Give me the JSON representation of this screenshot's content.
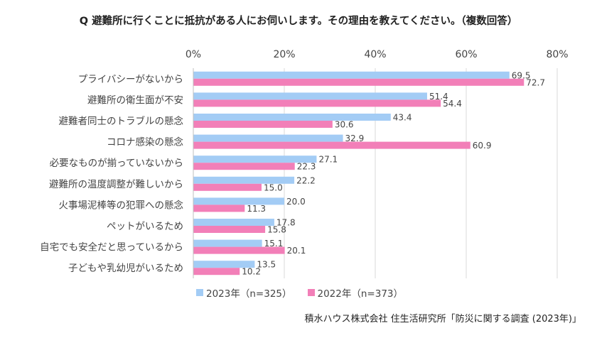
{
  "title": "Q 避難所に行くことに抵抗がある人にお伺いします。その理由を教えてください。（複数回答）",
  "source": "積水ハウス株式会社 住生活研究所「防災に関する調査 (2023年)」",
  "chart_data": {
    "type": "bar",
    "orientation": "horizontal",
    "title": "Q 避難所に行くことに抵抗がある人にお伺いします。その理由を教えてください。（複数回答）",
    "categories": [
      "プライバシーがないから",
      "避難所の衛生面が不安",
      "避難者同士のトラブルの懸念",
      "コロナ感染の懸念",
      "必要なものが揃っていないから",
      "避難所の温度調整が難しいから",
      "火事場泥棒等の犯罪への懸念",
      "ペットがいるため",
      "自宅でも安全だと思っているから",
      "子どもや乳幼児がいるため"
    ],
    "series": [
      {
        "name": "2023年（n=325）",
        "color": "#a3ccf5",
        "values": [
          69.5,
          51.4,
          43.4,
          32.9,
          27.1,
          22.2,
          20.0,
          17.8,
          15.1,
          13.5
        ],
        "labels": [
          "69.5",
          "51.4",
          "43.4",
          "32.9",
          "27.1",
          "22.2",
          "20.0",
          "17.8",
          "15.1",
          "13.5"
        ]
      },
      {
        "name": "2022年（n=373）",
        "color": "#f27fb8",
        "values": [
          72.7,
          54.4,
          30.6,
          60.9,
          22.3,
          15.0,
          11.3,
          15.8,
          20.1,
          10.2
        ],
        "labels": [
          "72.7",
          "54.4",
          "30.6",
          "60.9",
          "22.3",
          "15.0",
          "11.3",
          "15.8",
          "20.1",
          "10.2"
        ]
      }
    ],
    "ticks": [
      0,
      20,
      40,
      60,
      80
    ],
    "tick_labels": [
      "0%",
      "20%",
      "40%",
      "60%",
      "80%"
    ],
    "xlim": [
      0,
      80
    ],
    "grid": true,
    "legend_position": "bottom"
  }
}
